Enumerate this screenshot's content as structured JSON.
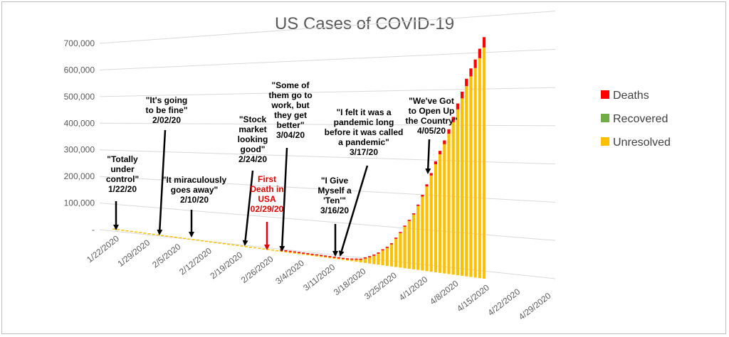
{
  "chart_data": {
    "type": "bar",
    "stacked": true,
    "perspective": "3d-tilted",
    "title": "US Cases of COVID-19",
    "ylim": [
      0,
      700000
    ],
    "yticks": [
      "-",
      "100,000",
      "200,000",
      "300,000",
      "400,000",
      "500,000",
      "600,000",
      "700,000"
    ],
    "ytick_values": [
      0,
      100000,
      200000,
      300000,
      400000,
      500000,
      600000,
      700000
    ],
    "xticks": [
      "1/22/2020",
      "1/29/2020",
      "2/5/2020",
      "2/12/2020",
      "2/19/2020",
      "2/26/2020",
      "3/4/2020",
      "3/11/2020",
      "3/18/2020",
      "3/25/2020",
      "4/1/2020",
      "4/8/2020",
      "4/15/2020",
      "4/22/2020",
      "4/29/2020"
    ],
    "grid": true,
    "legend_position": "right",
    "colors": {
      "Deaths": "#ff0000",
      "Recovered": "#70ad47",
      "Unresolved": "#ffc000"
    },
    "x": [
      "1/22/2020",
      "1/23/2020",
      "1/24/2020",
      "1/25/2020",
      "1/26/2020",
      "1/27/2020",
      "1/28/2020",
      "1/29/2020",
      "1/30/2020",
      "1/31/2020",
      "2/1/2020",
      "2/2/2020",
      "2/3/2020",
      "2/4/2020",
      "2/5/2020",
      "2/6/2020",
      "2/7/2020",
      "2/8/2020",
      "2/9/2020",
      "2/10/2020",
      "2/11/2020",
      "2/12/2020",
      "2/13/2020",
      "2/14/2020",
      "2/15/2020",
      "2/16/2020",
      "2/17/2020",
      "2/18/2020",
      "2/19/2020",
      "2/20/2020",
      "2/21/2020",
      "2/22/2020",
      "2/23/2020",
      "2/24/2020",
      "2/25/2020",
      "2/26/2020",
      "2/27/2020",
      "2/28/2020",
      "2/29/2020",
      "3/1/2020",
      "3/2/2020",
      "3/3/2020",
      "3/4/2020",
      "3/5/2020",
      "3/6/2020",
      "3/7/2020",
      "3/8/2020",
      "3/9/2020",
      "3/10/2020",
      "3/11/2020",
      "3/12/2020",
      "3/13/2020",
      "3/14/2020",
      "3/15/2020",
      "3/16/2020",
      "3/17/2020",
      "3/18/2020",
      "3/19/2020",
      "3/20/2020",
      "3/21/2020",
      "3/22/2020",
      "3/23/2020",
      "3/24/2020",
      "3/25/2020",
      "3/26/2020",
      "3/27/2020",
      "3/28/2020",
      "3/29/2020",
      "3/30/2020",
      "3/31/2020",
      "4/1/2020",
      "4/2/2020",
      "4/3/2020",
      "4/4/2020",
      "4/5/2020",
      "4/6/2020",
      "4/7/2020",
      "4/8/2020",
      "4/9/2020",
      "4/10/2020",
      "4/11/2020",
      "4/12/2020",
      "4/13/2020",
      "4/14/2020",
      "4/15/2020"
    ],
    "series": [
      {
        "name": "Deaths",
        "values": [
          0,
          0,
          0,
          0,
          0,
          0,
          0,
          0,
          0,
          0,
          0,
          0,
          0,
          0,
          0,
          0,
          0,
          0,
          0,
          0,
          0,
          0,
          0,
          0,
          0,
          0,
          0,
          0,
          0,
          0,
          0,
          0,
          0,
          0,
          0,
          0,
          0,
          0,
          1,
          1,
          6,
          9,
          11,
          12,
          14,
          17,
          21,
          22,
          28,
          36,
          40,
          47,
          54,
          63,
          85,
          108,
          118,
          200,
          244,
          307,
          427,
          552,
          706,
          942,
          1209,
          1581,
          2026,
          2467,
          2978,
          3873,
          4757,
          5926,
          7087,
          8407,
          9619,
          10783,
          12722,
          14695,
          16478,
          18586,
          20463,
          22020,
          23529,
          25831,
          28325
        ]
      },
      {
        "name": "Recovered",
        "values": [
          0,
          0,
          0,
          0,
          0,
          0,
          0,
          0,
          0,
          0,
          0,
          0,
          0,
          0,
          0,
          0,
          0,
          0,
          0,
          0,
          0,
          0,
          0,
          0,
          0,
          0,
          0,
          0,
          0,
          0,
          0,
          0,
          0,
          0,
          0,
          0,
          0,
          0,
          0,
          0,
          0,
          0,
          0,
          0,
          0,
          0,
          0,
          0,
          0,
          0,
          0,
          0,
          0,
          0,
          0,
          0,
          0,
          0,
          0,
          0,
          0,
          0,
          0,
          0,
          0,
          0,
          0,
          0,
          0,
          0,
          0,
          0,
          0,
          0,
          0,
          0,
          0,
          0,
          0,
          0,
          0,
          0,
          0,
          0,
          0
        ]
      },
      {
        "name": "Unresolved",
        "values": [
          1,
          1,
          2,
          2,
          5,
          5,
          5,
          5,
          5,
          6,
          8,
          8,
          11,
          11,
          11,
          12,
          12,
          12,
          12,
          12,
          13,
          13,
          14,
          14,
          14,
          14,
          14,
          14,
          14,
          14,
          15,
          15,
          15,
          50,
          51,
          56,
          57,
          59,
          67,
          73,
          90,
          120,
          150,
          200,
          230,
          410,
          510,
          660,
          930,
          1250,
          1640,
          2100,
          2800,
          3500,
          4600,
          6300,
          7700,
          13500,
          18700,
          25000,
          33000,
          44000,
          53000,
          65000,
          83000,
          101000,
          121000,
          139000,
          159000,
          185000,
          213000,
          243000,
          275000,
          308000,
          337000,
          366000,
          396000,
          429000,
          465000,
          496000,
          530000,
          557000,
          580000,
          607000,
          636000
        ]
      }
    ],
    "annotations": [
      {
        "text": [
          "\"Totally",
          "under",
          "control\"",
          "1/22/20"
        ],
        "date": "1/22/2020",
        "color": "black"
      },
      {
        "text": [
          "\"It's going",
          "to be fine\"",
          "2/02/20"
        ],
        "date": "2/2/2020",
        "color": "black"
      },
      {
        "text": [
          "\"It miraculously",
          "goes away\"",
          "2/10/20"
        ],
        "date": "2/10/2020",
        "color": "black"
      },
      {
        "text": [
          "\"Stock",
          "market",
          "looking",
          "good\"",
          "2/24/20"
        ],
        "date": "2/24/2020",
        "color": "black"
      },
      {
        "text": [
          "First",
          "Death in",
          "USA",
          "02/29/20"
        ],
        "date": "2/29/2020",
        "color": "red"
      },
      {
        "text": [
          "\"Some of",
          "them go to",
          "work, but",
          "they get",
          "better\"",
          "3/04/20"
        ],
        "date": "3/4/2020",
        "color": "black"
      },
      {
        "text": [
          "\"I Give",
          "Myself a",
          "'Ten'\"",
          "3/16/20"
        ],
        "date": "3/16/2020",
        "color": "black"
      },
      {
        "text": [
          "\"I felt it was a",
          "pandemic long",
          "before it was called",
          "a pandemic\"",
          "3/17/20"
        ],
        "date": "3/17/2020",
        "color": "black"
      },
      {
        "text": [
          "\"We've Got",
          "to Open Up",
          "the Country\"",
          "4/05/20"
        ],
        "date": "4/5/2020",
        "color": "black"
      }
    ]
  }
}
